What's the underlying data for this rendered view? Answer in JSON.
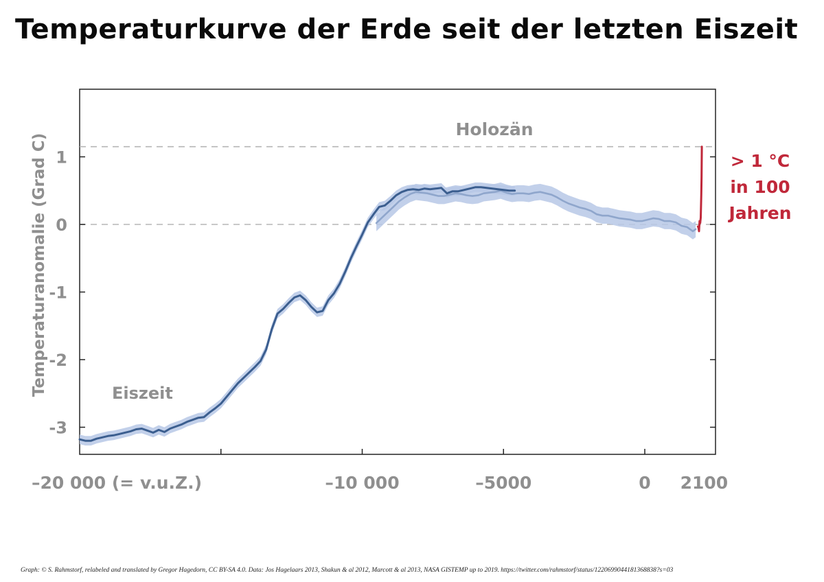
{
  "title": "Temperaturkurve der Erde seit der letzten Eiszeit",
  "credit": "Graph: © S. Rahmstorf, relabeled and translated by Gregor Hagedorn, CC BY-SA 4.0. Data: Jos Hagelaars 2013, Shakun & al 2012, Marcott & al 2013, NASA GISTEMP up to 2019. https://twitter.com/rahmstorf/status/1220699044181368838?s=03",
  "colors": {
    "axis_text": "#8f8f8f",
    "line_dark": "#3b5e8f",
    "line_light": "#8fa6cc",
    "band": "#b7c8e6",
    "modern": "#c0283a",
    "dashed": "#b5b5b5"
  },
  "chart_data": {
    "type": "line",
    "title": "Temperaturkurve der Erde seit der letzten Eiszeit",
    "ylabel": "Temperaturanomalie (Grad C)",
    "xlabel": "",
    "xlim": [
      -20000,
      2500
    ],
    "ylim": [
      -3.35,
      2.0
    ],
    "grid": false,
    "x_ticks": [
      {
        "value": -20000,
        "label": "–20 000 (= v.u.Z.)"
      },
      {
        "value": -15000,
        "label": ""
      },
      {
        "value": -10000,
        "label": "–10 000"
      },
      {
        "value": -5000,
        "label": "–5000"
      },
      {
        "value": 0,
        "label": "0"
      },
      {
        "value": 2100,
        "label": "2100"
      }
    ],
    "y_ticks": [
      {
        "value": 1,
        "label": "1"
      },
      {
        "value": 0,
        "label": "0"
      },
      {
        "value": -1,
        "label": "-1"
      },
      {
        "value": -2,
        "label": "-2"
      },
      {
        "value": -3,
        "label": "-3"
      }
    ],
    "reference_lines": [
      {
        "y": 1.15,
        "style": "dashed"
      },
      {
        "y": 0,
        "style": "dashed"
      }
    ],
    "annotations": [
      {
        "text": "Holozän",
        "x": -7500,
        "y": 1.4,
        "color": "#8f8f8f"
      },
      {
        "text": "Eiszeit",
        "x": -18600,
        "y": -2.48,
        "color": "#8f8f8f"
      }
    ],
    "modern_label": [
      "> 1 °C",
      "in 100",
      "Jahren"
    ],
    "series": [
      {
        "name": "Shakun",
        "color": "#3b5e8f",
        "band_halfwidth": 0.07,
        "x": [
          -20000,
          -19800,
          -19600,
          -19400,
          -19200,
          -19000,
          -18800,
          -18600,
          -18400,
          -18200,
          -18000,
          -17800,
          -17600,
          -17400,
          -17200,
          -17000,
          -16800,
          -16600,
          -16400,
          -16200,
          -16000,
          -15800,
          -15600,
          -15400,
          -15200,
          -15000,
          -14800,
          -14600,
          -14400,
          -14200,
          -14000,
          -13800,
          -13600,
          -13400,
          -13200,
          -13000,
          -12800,
          -12600,
          -12400,
          -12200,
          -12000,
          -11800,
          -11600,
          -11400,
          -11200,
          -11000,
          -10800,
          -10600,
          -10400,
          -10200,
          -10000,
          -9800,
          -9600,
          -9400,
          -9200,
          -9000,
          -8800,
          -8600,
          -8400,
          -8200,
          -8000,
          -7800,
          -7600,
          -7400,
          -7200,
          -7000,
          -6800,
          -6600,
          -6400,
          -6200,
          -6000,
          -5800,
          -5600,
          -5400,
          -5200,
          -5000,
          -4800,
          -4600
        ],
        "y": [
          -3.18,
          -3.2,
          -3.2,
          -3.17,
          -3.15,
          -3.13,
          -3.12,
          -3.1,
          -3.08,
          -3.06,
          -3.03,
          -3.02,
          -3.05,
          -3.08,
          -3.04,
          -3.07,
          -3.02,
          -2.99,
          -2.96,
          -2.92,
          -2.89,
          -2.86,
          -2.85,
          -2.78,
          -2.72,
          -2.65,
          -2.55,
          -2.45,
          -2.35,
          -2.27,
          -2.19,
          -2.11,
          -2.02,
          -1.85,
          -1.55,
          -1.32,
          -1.25,
          -1.16,
          -1.08,
          -1.05,
          -1.12,
          -1.22,
          -1.3,
          -1.28,
          -1.12,
          -1.02,
          -0.88,
          -0.7,
          -0.5,
          -0.32,
          -0.15,
          0.03,
          0.15,
          0.26,
          0.28,
          0.35,
          0.43,
          0.48,
          0.51,
          0.52,
          0.51,
          0.53,
          0.52,
          0.53,
          0.54,
          0.46,
          0.49,
          0.49,
          0.51,
          0.53,
          0.55,
          0.55,
          0.54,
          0.53,
          0.52,
          0.51,
          0.5,
          0.5
        ]
      },
      {
        "name": "Marcott",
        "color": "#8fa6cc",
        "band_halfwidth": 0.12,
        "x": [
          -9500,
          -9300,
          -9100,
          -8900,
          -8700,
          -8500,
          -8300,
          -8100,
          -7900,
          -7700,
          -7500,
          -7300,
          -7100,
          -6900,
          -6700,
          -6500,
          -6300,
          -6100,
          -5900,
          -5700,
          -5500,
          -5300,
          -5100,
          -4900,
          -4700,
          -4500,
          -4300,
          -4100,
          -3900,
          -3700,
          -3500,
          -3300,
          -3100,
          -2900,
          -2700,
          -2500,
          -2300,
          -2100,
          -1900,
          -1700,
          -1500,
          -1300,
          -1100,
          -900,
          -700,
          -500,
          -300,
          -100,
          100,
          300,
          500,
          700,
          900,
          1100,
          1300,
          1500,
          1700,
          1800
        ],
        "y": [
          0.02,
          0.1,
          0.18,
          0.26,
          0.34,
          0.4,
          0.45,
          0.48,
          0.47,
          0.46,
          0.44,
          0.42,
          0.42,
          0.44,
          0.46,
          0.45,
          0.43,
          0.42,
          0.43,
          0.46,
          0.47,
          0.48,
          0.5,
          0.47,
          0.45,
          0.46,
          0.46,
          0.45,
          0.47,
          0.48,
          0.46,
          0.44,
          0.4,
          0.35,
          0.31,
          0.28,
          0.25,
          0.23,
          0.2,
          0.15,
          0.13,
          0.13,
          0.11,
          0.09,
          0.08,
          0.07,
          0.05,
          0.05,
          0.07,
          0.09,
          0.08,
          0.05,
          0.05,
          0.03,
          -0.02,
          -0.04,
          -0.1,
          -0.07
        ]
      },
      {
        "name": "GISTEMP",
        "color": "#c0283a",
        "x": [
          1880,
          1900,
          1920,
          1940,
          1960,
          1980,
          2000,
          2010,
          2019
        ],
        "y": [
          -0.03,
          -0.05,
          -0.1,
          0.05,
          0.02,
          0.1,
          0.45,
          0.7,
          1.15
        ]
      }
    ]
  }
}
